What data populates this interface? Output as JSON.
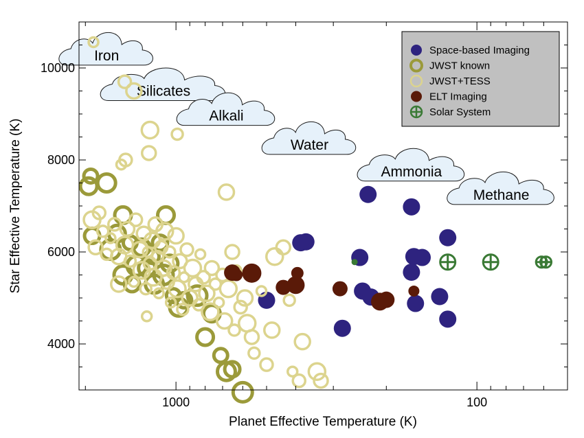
{
  "chart_data": {
    "type": "scatter",
    "title": "",
    "xlabel": "Planet Effective Temperature (K)",
    "ylabel": "Star Effective Temperature (K)",
    "x_scale": "log",
    "x_reversed": true,
    "xlim": [
      2100,
      50
    ],
    "ylim": [
      3000,
      11000
    ],
    "x_ticks": [
      {
        "value": 1000,
        "label": "1000"
      },
      {
        "value": 100,
        "label": "100"
      }
    ],
    "y_ticks": [
      {
        "value": 4000,
        "label": "4000"
      },
      {
        "value": 6000,
        "label": "6000"
      },
      {
        "value": 8000,
        "label": "8000"
      },
      {
        "value": 10000,
        "label": "10000"
      }
    ],
    "grid": false,
    "legend_position": "top-right",
    "series": [
      {
        "name": "Space-based Imaging",
        "marker": "filled-circle",
        "color": "#2e237f",
        "points": [
          {
            "x": 500,
            "y": 4950
          },
          {
            "x": 370,
            "y": 6220
          },
          {
            "x": 385,
            "y": 6200
          },
          {
            "x": 230,
            "y": 7250
          },
          {
            "x": 165,
            "y": 6980
          },
          {
            "x": 125,
            "y": 6310
          },
          {
            "x": 280,
            "y": 4340
          },
          {
            "x": 245,
            "y": 5880
          },
          {
            "x": 240,
            "y": 5150
          },
          {
            "x": 225,
            "y": 5020
          },
          {
            "x": 162,
            "y": 5900
          },
          {
            "x": 152,
            "y": 5880
          },
          {
            "x": 165,
            "y": 5560
          },
          {
            "x": 160,
            "y": 4880
          },
          {
            "x": 133,
            "y": 5030
          },
          {
            "x": 125,
            "y": 4540
          }
        ]
      },
      {
        "name": "JWST known",
        "marker": "thick-open-circle",
        "color": "#9b9a3a",
        "points": [
          {
            "x": 1950,
            "y": 7430
          },
          {
            "x": 1920,
            "y": 7650
          },
          {
            "x": 1700,
            "y": 7500
          },
          {
            "x": 1900,
            "y": 6350
          },
          {
            "x": 1650,
            "y": 6050
          },
          {
            "x": 1570,
            "y": 6400
          },
          {
            "x": 1500,
            "y": 6800
          },
          {
            "x": 1420,
            "y": 6200
          },
          {
            "x": 1500,
            "y": 5500
          },
          {
            "x": 1400,
            "y": 5300
          },
          {
            "x": 1350,
            "y": 5700
          },
          {
            "x": 1300,
            "y": 6100
          },
          {
            "x": 1250,
            "y": 5650
          },
          {
            "x": 1200,
            "y": 5900
          },
          {
            "x": 1180,
            "y": 5300
          },
          {
            "x": 1130,
            "y": 6200
          },
          {
            "x": 1100,
            "y": 5500
          },
          {
            "x": 1080,
            "y": 6800
          },
          {
            "x": 1050,
            "y": 5750
          },
          {
            "x": 1020,
            "y": 5050
          },
          {
            "x": 980,
            "y": 4800
          },
          {
            "x": 940,
            "y": 4950
          },
          {
            "x": 850,
            "y": 5050
          },
          {
            "x": 760,
            "y": 4660
          },
          {
            "x": 800,
            "y": 4150
          },
          {
            "x": 710,
            "y": 3750
          },
          {
            "x": 680,
            "y": 3400
          },
          {
            "x": 650,
            "y": 3450
          },
          {
            "x": 600,
            "y": 2950
          }
        ]
      },
      {
        "name": "JWST+TESS",
        "marker": "open-circle",
        "color": "#dcd48e",
        "points": [
          {
            "x": 1880,
            "y": 10560
          },
          {
            "x": 1480,
            "y": 9700
          },
          {
            "x": 1380,
            "y": 9500
          },
          {
            "x": 1220,
            "y": 8650
          },
          {
            "x": 1230,
            "y": 8150
          },
          {
            "x": 990,
            "y": 8560
          },
          {
            "x": 1520,
            "y": 7900
          },
          {
            "x": 1470,
            "y": 8000
          },
          {
            "x": 680,
            "y": 7300
          },
          {
            "x": 1900,
            "y": 6700
          },
          {
            "x": 1850,
            "y": 6100
          },
          {
            "x": 1750,
            "y": 6450
          },
          {
            "x": 1650,
            "y": 6300
          },
          {
            "x": 1600,
            "y": 6600
          },
          {
            "x": 1550,
            "y": 5900
          },
          {
            "x": 1480,
            "y": 6150
          },
          {
            "x": 1450,
            "y": 6500
          },
          {
            "x": 1420,
            "y": 5800
          },
          {
            "x": 1380,
            "y": 5350
          },
          {
            "x": 1360,
            "y": 6700
          },
          {
            "x": 1320,
            "y": 6050
          },
          {
            "x": 1300,
            "y": 5600
          },
          {
            "x": 1280,
            "y": 6400
          },
          {
            "x": 1260,
            "y": 5200
          },
          {
            "x": 1240,
            "y": 6000
          },
          {
            "x": 1220,
            "y": 5750
          },
          {
            "x": 1200,
            "y": 6250
          },
          {
            "x": 1190,
            "y": 5450
          },
          {
            "x": 1170,
            "y": 6600
          },
          {
            "x": 1150,
            "y": 5900
          },
          {
            "x": 1140,
            "y": 5100
          },
          {
            "x": 1120,
            "y": 6100
          },
          {
            "x": 1100,
            "y": 5650
          },
          {
            "x": 1090,
            "y": 6450
          },
          {
            "x": 1070,
            "y": 5350
          },
          {
            "x": 1050,
            "y": 6000
          },
          {
            "x": 1040,
            "y": 4900
          },
          {
            "x": 1020,
            "y": 5550
          },
          {
            "x": 1000,
            "y": 6350
          },
          {
            "x": 990,
            "y": 5200
          },
          {
            "x": 970,
            "y": 5800
          },
          {
            "x": 950,
            "y": 4750
          },
          {
            "x": 940,
            "y": 5450
          },
          {
            "x": 920,
            "y": 6050
          },
          {
            "x": 900,
            "y": 5000
          },
          {
            "x": 880,
            "y": 5650
          },
          {
            "x": 860,
            "y": 5300
          },
          {
            "x": 840,
            "y": 4850
          },
          {
            "x": 830,
            "y": 5950
          },
          {
            "x": 810,
            "y": 5450
          },
          {
            "x": 790,
            "y": 5100
          },
          {
            "x": 770,
            "y": 4700
          },
          {
            "x": 760,
            "y": 5650
          },
          {
            "x": 740,
            "y": 5300
          },
          {
            "x": 720,
            "y": 4900
          },
          {
            "x": 700,
            "y": 5500
          },
          {
            "x": 690,
            "y": 4500
          },
          {
            "x": 670,
            "y": 5200
          },
          {
            "x": 650,
            "y": 6000
          },
          {
            "x": 640,
            "y": 4300
          },
          {
            "x": 630,
            "y": 5600
          },
          {
            "x": 610,
            "y": 4800
          },
          {
            "x": 590,
            "y": 5000
          },
          {
            "x": 580,
            "y": 4450
          },
          {
            "x": 560,
            "y": 4150
          },
          {
            "x": 550,
            "y": 3800
          },
          {
            "x": 520,
            "y": 5150
          },
          {
            "x": 500,
            "y": 3550
          },
          {
            "x": 480,
            "y": 4300
          },
          {
            "x": 470,
            "y": 5900
          },
          {
            "x": 440,
            "y": 6100
          },
          {
            "x": 420,
            "y": 4950
          },
          {
            "x": 410,
            "y": 3400
          },
          {
            "x": 390,
            "y": 3200
          },
          {
            "x": 380,
            "y": 4050
          },
          {
            "x": 340,
            "y": 3400
          },
          {
            "x": 330,
            "y": 3200
          },
          {
            "x": 1700,
            "y": 5950
          },
          {
            "x": 1250,
            "y": 4600
          },
          {
            "x": 1800,
            "y": 6850
          },
          {
            "x": 1550,
            "y": 5300
          }
        ]
      },
      {
        "name": "ELT Imaging",
        "marker": "filled-circle",
        "color": "#5a1a08",
        "points": [
          {
            "x": 650,
            "y": 5550
          },
          {
            "x": 630,
            "y": 5500
          },
          {
            "x": 560,
            "y": 5540
          },
          {
            "x": 440,
            "y": 5230
          },
          {
            "x": 400,
            "y": 5280
          },
          {
            "x": 395,
            "y": 5540
          },
          {
            "x": 285,
            "y": 5200
          },
          {
            "x": 200,
            "y": 4960
          },
          {
            "x": 210,
            "y": 4920
          },
          {
            "x": 162,
            "y": 5150
          }
        ]
      },
      {
        "name": "Solar System",
        "marker": "circled-plus",
        "color": "#3a7a35",
        "points": [
          {
            "x": 255,
            "y": 5780
          },
          {
            "x": 125,
            "y": 5780
          },
          {
            "x": 90,
            "y": 5780
          },
          {
            "x": 61,
            "y": 5780
          },
          {
            "x": 59,
            "y": 5780
          }
        ]
      }
    ],
    "annotations": [
      {
        "text": "Iron",
        "x": 1700,
        "y": 10270
      },
      {
        "text": "Silicates",
        "x": 1100,
        "y": 9500
      },
      {
        "text": "Alkali",
        "x": 680,
        "y": 8960
      },
      {
        "text": "Water",
        "x": 360,
        "y": 8330
      },
      {
        "text": "Ammonia",
        "x": 165,
        "y": 7750
      },
      {
        "text": "Methane",
        "x": 83,
        "y": 7240
      }
    ]
  }
}
